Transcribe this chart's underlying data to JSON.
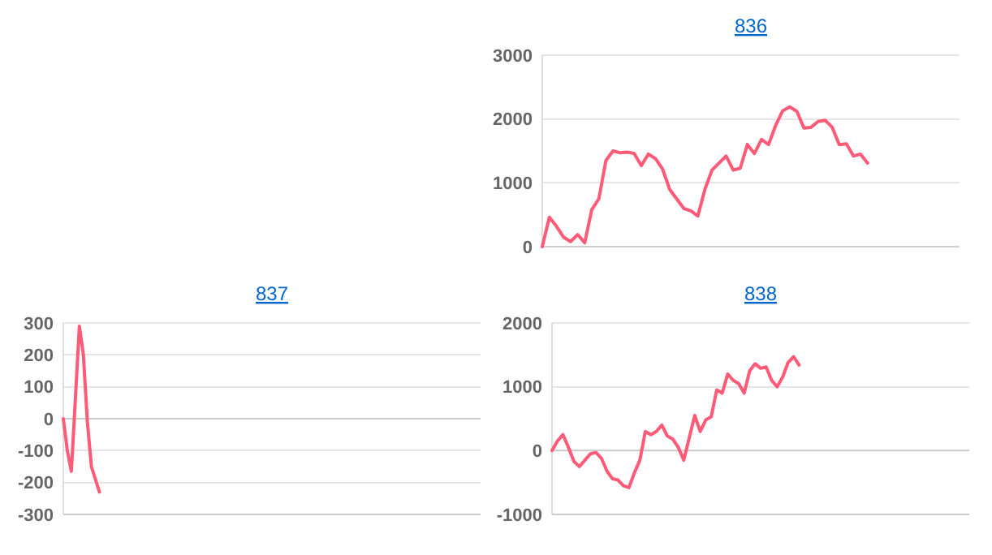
{
  "chart_data": [
    {
      "type": "line",
      "title": "836",
      "grid": "y",
      "ylim": [
        0,
        3000
      ],
      "yticks": [
        0,
        1000,
        2000,
        3000
      ],
      "tick_labels": "y",
      "categories": [
        null,
        null,
        null,
        null,
        null,
        null,
        null,
        null,
        null,
        null,
        null,
        null,
        null,
        null,
        null,
        null,
        null,
        null,
        null,
        null,
        null,
        null,
        null,
        null,
        null,
        null,
        null,
        null,
        null,
        null,
        null,
        null,
        null,
        null,
        null,
        null,
        null,
        null,
        null,
        null,
        null,
        null,
        null,
        null,
        null,
        null,
        null,
        null,
        null,
        null,
        null,
        null,
        null,
        null,
        null,
        null,
        null,
        null,
        null,
        null
      ],
      "series": [
        {
          "color": "#ff5a78",
          "values": [
            0,
            460,
            320,
            150,
            80,
            190,
            60,
            580,
            750,
            1350,
            1500,
            1470,
            1480,
            1460,
            1270,
            1450,
            1380,
            1220,
            900,
            750,
            600,
            560,
            480,
            900,
            1200,
            1310,
            1420,
            1200,
            1230,
            1600,
            1460,
            1680,
            1600,
            1900,
            2130,
            2190,
            2120,
            1860,
            1870,
            1960,
            1980,
            1870,
            1600,
            1610,
            1420,
            1450,
            1310,
            null,
            null,
            null,
            null,
            null,
            null,
            null,
            null,
            null,
            null,
            null,
            null,
            null
          ]
        }
      ]
    },
    {
      "type": "line",
      "title": "837",
      "grid": "y",
      "ylim": [
        -300,
        300
      ],
      "yticks": [
        -300,
        -200,
        -100,
        0,
        100,
        200,
        300
      ],
      "tick_labels": "y",
      "categories": [
        null,
        null,
        null,
        null,
        null,
        null,
        null,
        null,
        null,
        null,
        null,
        null,
        null,
        null,
        null,
        null,
        null,
        null,
        null,
        null,
        null,
        null,
        null,
        null,
        null,
        null,
        null,
        null,
        null,
        null,
        null,
        null,
        null,
        null,
        null,
        null,
        null,
        null,
        null,
        null,
        null,
        null,
        null,
        null,
        null,
        null,
        null,
        null,
        null,
        null,
        null,
        null,
        null,
        null,
        null,
        null,
        null,
        null,
        null,
        null,
        null,
        null,
        null,
        null,
        null,
        null,
        null,
        null,
        null,
        null,
        null,
        null,
        null,
        null,
        null,
        null,
        null,
        null,
        null,
        null,
        null,
        null,
        null,
        null,
        null,
        null,
        null,
        null,
        null,
        null,
        null,
        null,
        null,
        null,
        null,
        null,
        null,
        null,
        null,
        null,
        null,
        null,
        null,
        null,
        null
      ],
      "series": [
        {
          "color": "#ff5a78",
          "values": [
            0,
            -100,
            -165,
            60,
            290,
            200,
            -10,
            -150,
            -190,
            -230,
            null,
            null,
            null,
            null,
            null,
            null,
            null,
            null,
            null,
            null,
            null,
            null,
            null,
            null,
            null,
            null,
            null,
            null,
            null,
            null,
            null,
            null,
            null,
            null,
            null,
            null,
            null,
            null,
            null,
            null,
            null,
            null,
            null,
            null,
            null,
            null,
            null,
            null,
            null,
            null,
            null,
            null,
            null,
            null,
            null,
            null,
            null,
            null,
            null,
            null,
            null,
            null,
            null,
            null,
            null,
            null,
            null,
            null,
            null,
            null,
            null,
            null,
            null,
            null,
            null,
            null,
            null,
            null,
            null,
            null,
            null,
            null,
            null,
            null,
            null,
            null,
            null,
            null,
            null,
            null,
            null,
            null,
            null,
            null,
            null,
            null,
            null,
            null,
            null,
            null,
            null,
            null,
            null,
            null,
            null
          ]
        }
      ]
    },
    {
      "type": "line",
      "title": "838",
      "grid": "y",
      "ylim": [
        -1000,
        2000
      ],
      "yticks": [
        -1000,
        0,
        1000,
        2000
      ],
      "tick_labels": "y",
      "categories": [
        null,
        null,
        null,
        null,
        null,
        null,
        null,
        null,
        null,
        null,
        null,
        null,
        null,
        null,
        null,
        null,
        null,
        null,
        null,
        null,
        null,
        null,
        null,
        null,
        null,
        null,
        null,
        null,
        null,
        null,
        null,
        null,
        null,
        null,
        null,
        null,
        null,
        null,
        null,
        null,
        null,
        null,
        null,
        null,
        null,
        null,
        null,
        null,
        null,
        null,
        null,
        null,
        null,
        null,
        null,
        null,
        null,
        null,
        null,
        null,
        null,
        null,
        null,
        null,
        null,
        null,
        null,
        null,
        null,
        null,
        null,
        null,
        null,
        null,
        null,
        null,
        null
      ],
      "series": [
        {
          "color": "#ff5a78",
          "values": [
            0,
            150,
            250,
            50,
            -170,
            -250,
            -150,
            -50,
            -30,
            -120,
            -320,
            -440,
            -460,
            -550,
            -580,
            -350,
            -150,
            300,
            250,
            300,
            400,
            230,
            180,
            50,
            -150,
            200,
            550,
            300,
            480,
            530,
            950,
            900,
            1200,
            1100,
            1050,
            900,
            1250,
            1360,
            1290,
            1310,
            1100,
            1000,
            1150,
            1380,
            1470,
            1340,
            null,
            null,
            null,
            null,
            null,
            null,
            null,
            null,
            null,
            null,
            null,
            null,
            null,
            null,
            null,
            null,
            null,
            null,
            null,
            null,
            null,
            null,
            null,
            null,
            null,
            null,
            null,
            null,
            null,
            null,
            null
          ]
        }
      ]
    }
  ]
}
